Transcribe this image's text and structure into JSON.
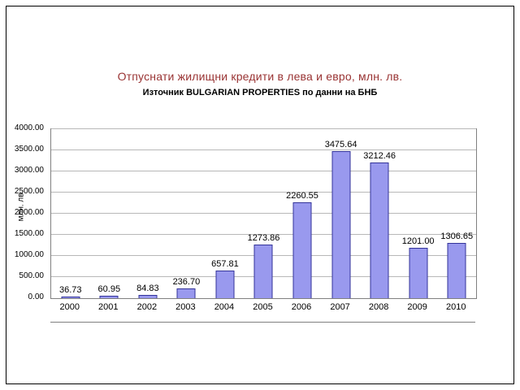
{
  "chart_data": {
    "type": "bar",
    "title": "Отпуснати жилищни кредити в лева и евро, млн. лв.",
    "subtitle": "Източник BULGARIAN PROPERTIES по данни на БНБ",
    "ylabel": "млн. лв.",
    "xlabel": "",
    "categories": [
      "2000",
      "2001",
      "2002",
      "2003",
      "2004",
      "2005",
      "2006",
      "2007",
      "2008",
      "2009",
      "2010"
    ],
    "values": [
      36.73,
      60.95,
      84.83,
      236.7,
      657.81,
      1273.86,
      2260.55,
      3475.64,
      3212.46,
      1201.0,
      1306.65
    ],
    "value_labels": [
      "36.73",
      "60.95",
      "84.83",
      "236.70",
      "657.81",
      "1273.86",
      "2260.55",
      "3475.64",
      "3212.46",
      "1201.00",
      "1306.65"
    ],
    "ylim": [
      0,
      4000
    ],
    "ytick_labels": [
      "0.00",
      "500.00",
      "1000.00",
      "1500.00",
      "2000.00",
      "2500.00",
      "3000.00",
      "3500.00",
      "4000.00"
    ],
    "grid": true,
    "legend_position": "none",
    "colors": {
      "bar_fill": "#9999ee",
      "bar_border": "#333399",
      "gridline": "#b8b8b8",
      "title_color": "#993333",
      "plot_border": "#808080",
      "frame_border": "#000000"
    }
  }
}
